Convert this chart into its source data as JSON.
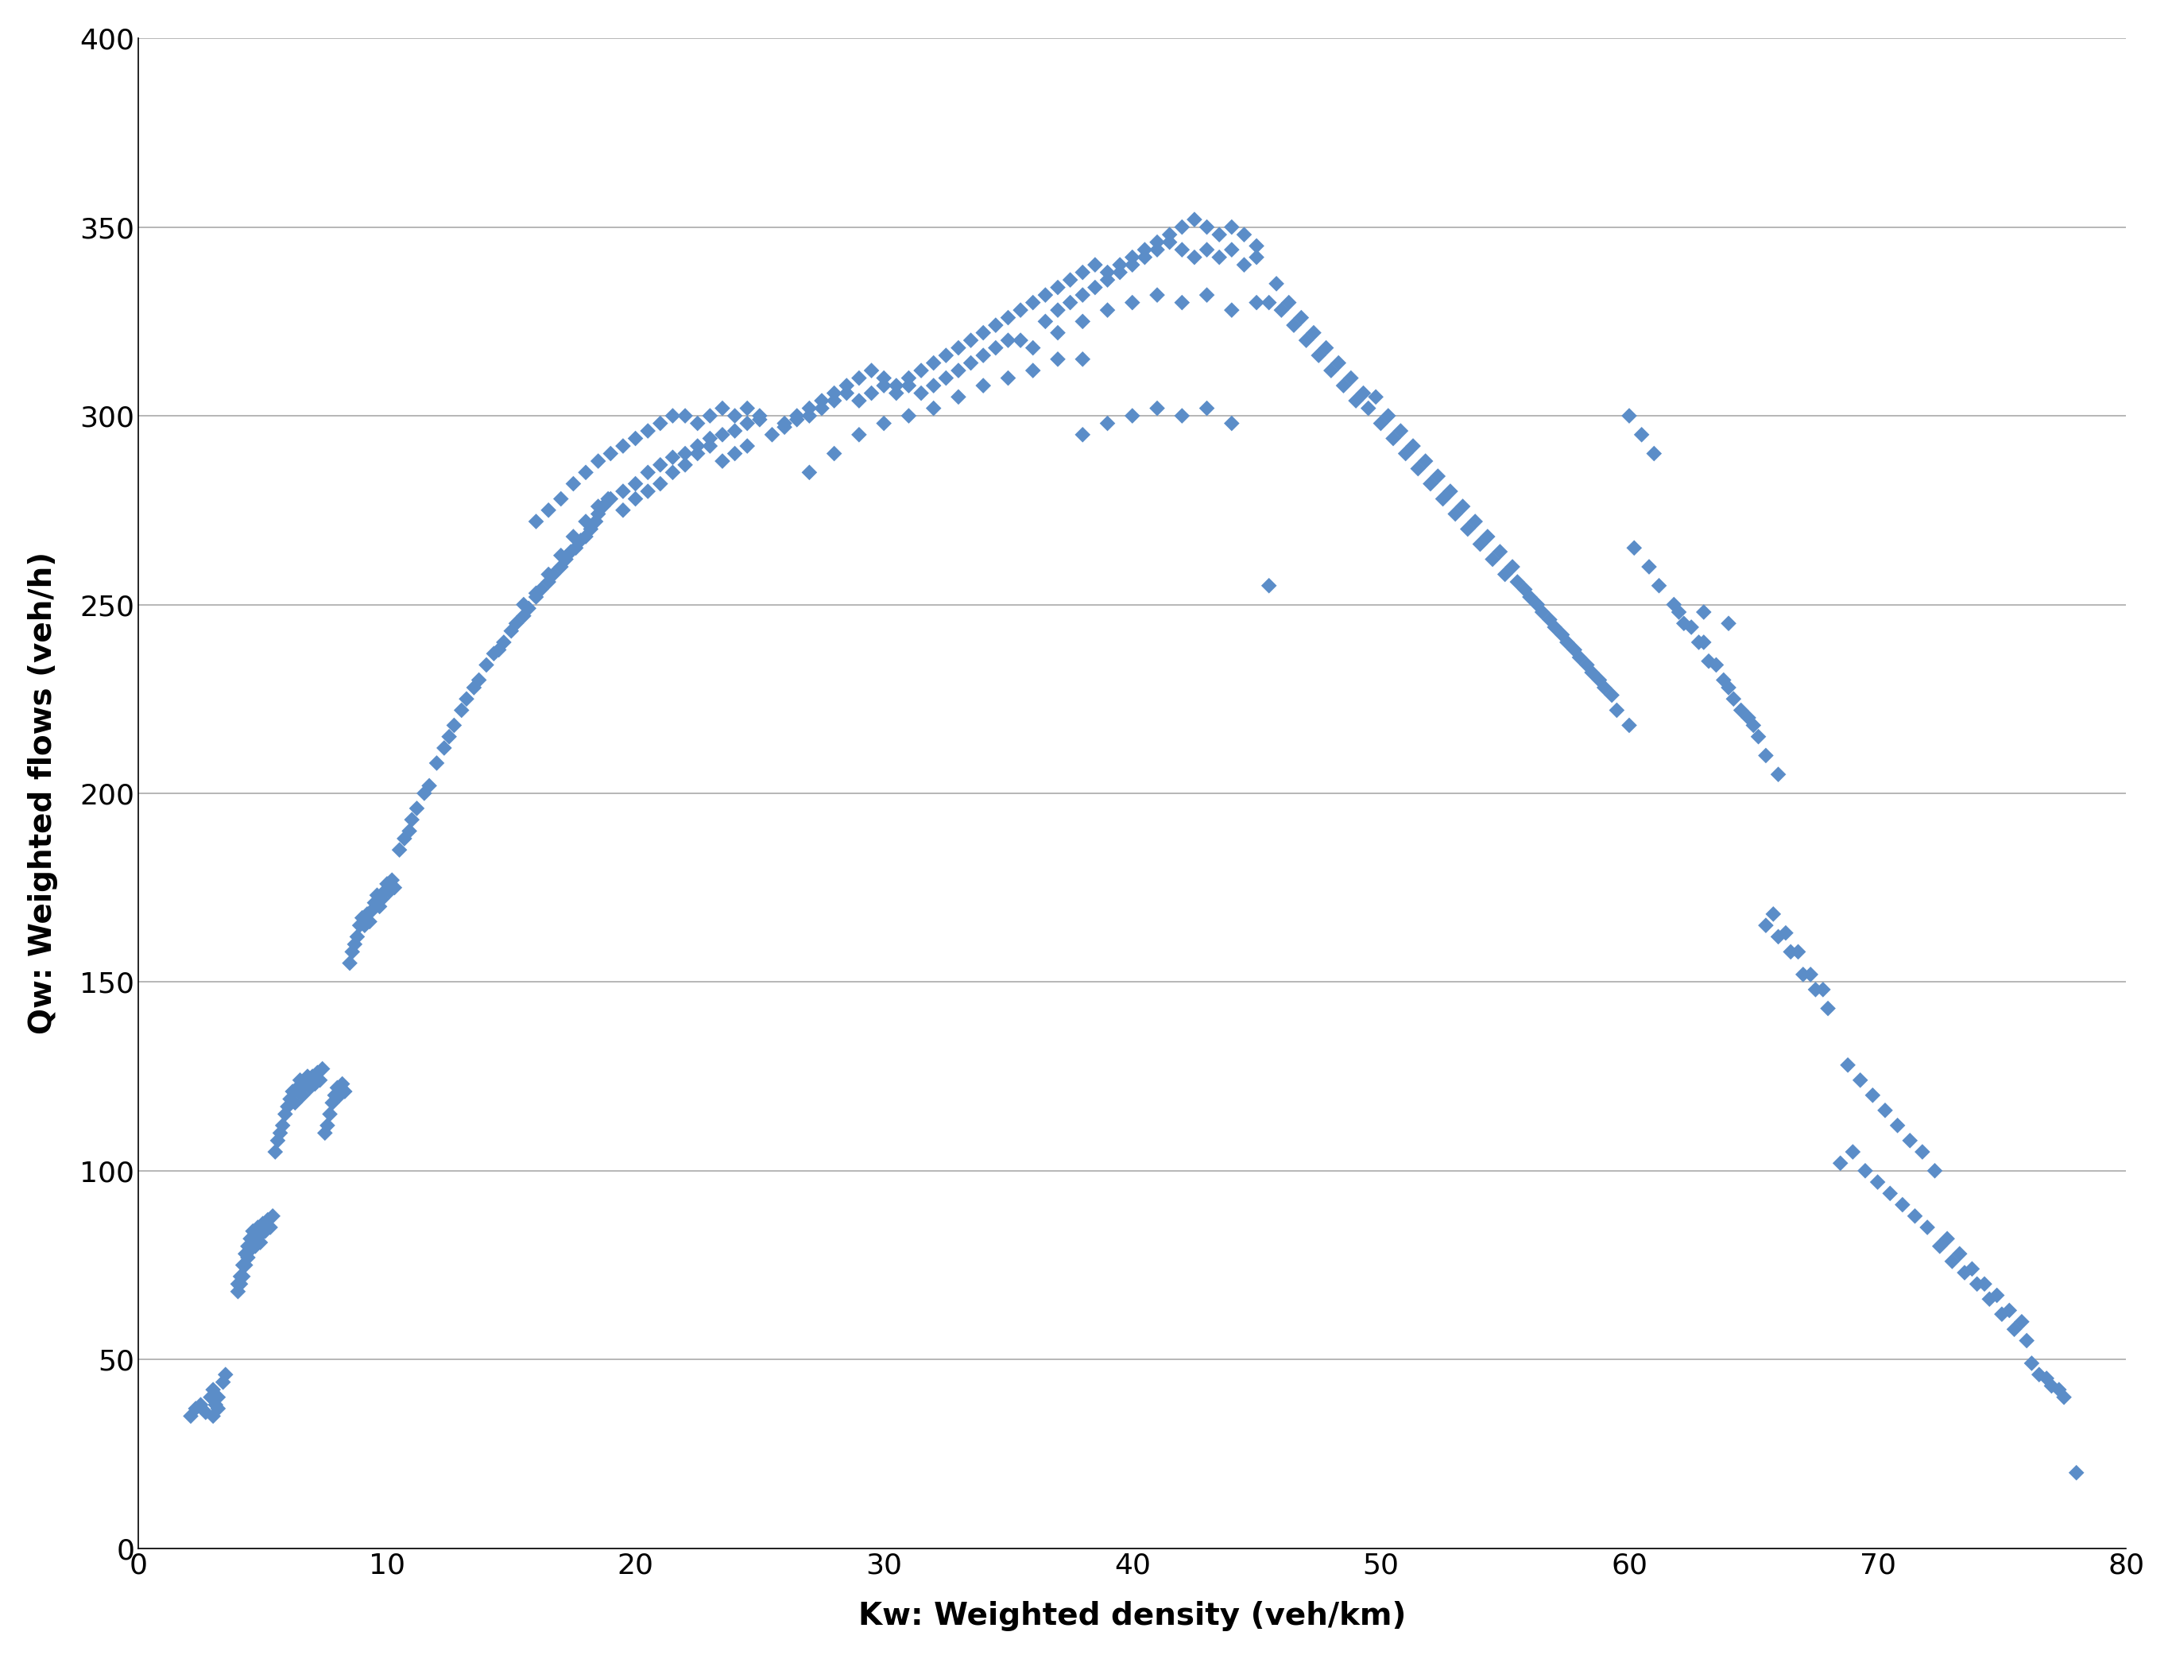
{
  "title": "",
  "xlabel": "Kw: Weighted density (veh/km)",
  "ylabel": "Qw: Weighted flows (veh/h)",
  "xlim": [
    0,
    80
  ],
  "ylim": [
    0,
    400
  ],
  "xticks": [
    0,
    10,
    20,
    30,
    40,
    50,
    60,
    70,
    80
  ],
  "yticks": [
    0,
    50,
    100,
    150,
    200,
    250,
    300,
    350,
    400
  ],
  "marker_color": "#5B8DC8",
  "marker_style": "D",
  "marker_size": 100,
  "background_color": "#FFFFFF",
  "grid_color": "#AAAAAA",
  "xlabel_fontsize": 28,
  "ylabel_fontsize": 28,
  "tick_fontsize": 26,
  "scatter_data": [
    [
      2.1,
      35
    ],
    [
      2.3,
      37
    ],
    [
      2.5,
      38
    ],
    [
      2.7,
      36
    ],
    [
      2.9,
      40
    ],
    [
      3.0,
      42
    ],
    [
      3.1,
      38
    ],
    [
      3.2,
      40
    ],
    [
      3.4,
      44
    ],
    [
      3.5,
      46
    ],
    [
      3.0,
      35
    ],
    [
      3.2,
      37
    ],
    [
      4.0,
      70
    ],
    [
      4.1,
      72
    ],
    [
      4.2,
      75
    ],
    [
      4.3,
      78
    ],
    [
      4.4,
      80
    ],
    [
      4.5,
      82
    ],
    [
      4.6,
      84
    ],
    [
      4.7,
      82
    ],
    [
      4.8,
      85
    ],
    [
      4.9,
      83
    ],
    [
      5.0,
      86
    ],
    [
      5.1,
      84
    ],
    [
      5.2,
      87
    ],
    [
      5.3,
      85
    ],
    [
      5.4,
      88
    ],
    [
      4.0,
      68
    ],
    [
      4.1,
      70
    ],
    [
      4.2,
      72
    ],
    [
      4.3,
      75
    ],
    [
      4.4,
      77
    ],
    [
      4.5,
      79
    ],
    [
      4.6,
      81
    ],
    [
      4.7,
      80
    ],
    [
      4.8,
      83
    ],
    [
      4.9,
      81
    ],
    [
      5.5,
      105
    ],
    [
      5.6,
      108
    ],
    [
      5.7,
      110
    ],
    [
      5.8,
      112
    ],
    [
      5.9,
      115
    ],
    [
      6.0,
      117
    ],
    [
      6.1,
      119
    ],
    [
      6.2,
      121
    ],
    [
      6.3,
      118
    ],
    [
      6.4,
      122
    ],
    [
      6.5,
      124
    ],
    [
      6.6,
      120
    ],
    [
      6.7,
      123
    ],
    [
      6.8,
      125
    ],
    [
      6.9,
      122
    ],
    [
      7.0,
      125
    ],
    [
      7.1,
      123
    ],
    [
      7.2,
      126
    ],
    [
      7.3,
      124
    ],
    [
      7.4,
      127
    ],
    [
      7.5,
      110
    ],
    [
      7.6,
      112
    ],
    [
      7.7,
      115
    ],
    [
      7.8,
      118
    ],
    [
      7.9,
      120
    ],
    [
      8.0,
      122
    ],
    [
      8.1,
      120
    ],
    [
      8.2,
      123
    ],
    [
      8.3,
      121
    ],
    [
      8.5,
      155
    ],
    [
      8.6,
      158
    ],
    [
      8.7,
      160
    ],
    [
      8.8,
      162
    ],
    [
      8.9,
      165
    ],
    [
      9.0,
      167
    ],
    [
      9.1,
      165
    ],
    [
      9.2,
      168
    ],
    [
      9.3,
      166
    ],
    [
      9.4,
      169
    ],
    [
      9.5,
      171
    ],
    [
      9.6,
      173
    ],
    [
      9.7,
      170
    ],
    [
      9.8,
      172
    ],
    [
      9.9,
      174
    ],
    [
      10.0,
      176
    ],
    [
      10.1,
      174
    ],
    [
      10.2,
      177
    ],
    [
      10.3,
      175
    ],
    [
      10.5,
      185
    ],
    [
      10.7,
      188
    ],
    [
      10.9,
      190
    ],
    [
      11.0,
      193
    ],
    [
      11.2,
      196
    ],
    [
      11.5,
      200
    ],
    [
      11.7,
      202
    ],
    [
      12.0,
      208
    ],
    [
      12.3,
      212
    ],
    [
      12.5,
      215
    ],
    [
      12.7,
      218
    ],
    [
      13.0,
      222
    ],
    [
      13.2,
      225
    ],
    [
      13.5,
      228
    ],
    [
      13.7,
      230
    ],
    [
      14.0,
      234
    ],
    [
      14.3,
      237
    ],
    [
      14.5,
      238
    ],
    [
      14.7,
      240
    ],
    [
      15.0,
      243
    ],
    [
      15.2,
      245
    ],
    [
      15.5,
      247
    ],
    [
      15.7,
      249
    ],
    [
      16.0,
      252
    ],
    [
      16.2,
      254
    ],
    [
      16.5,
      256
    ],
    [
      16.7,
      258
    ],
    [
      17.0,
      260
    ],
    [
      17.2,
      262
    ],
    [
      17.4,
      264
    ],
    [
      17.6,
      265
    ],
    [
      17.8,
      267
    ],
    [
      18.0,
      268
    ],
    [
      18.2,
      270
    ],
    [
      18.4,
      272
    ],
    [
      18.5,
      274
    ],
    [
      18.7,
      276
    ],
    [
      18.9,
      278
    ],
    [
      15.5,
      250
    ],
    [
      16.0,
      253
    ],
    [
      16.5,
      258
    ],
    [
      17.0,
      263
    ],
    [
      17.5,
      268
    ],
    [
      18.0,
      272
    ],
    [
      18.5,
      276
    ],
    [
      19.0,
      278
    ],
    [
      19.5,
      280
    ],
    [
      20.0,
      282
    ],
    [
      20.5,
      285
    ],
    [
      21.0,
      287
    ],
    [
      21.5,
      289
    ],
    [
      22.0,
      290
    ],
    [
      22.5,
      292
    ],
    [
      23.0,
      294
    ],
    [
      23.5,
      295
    ],
    [
      24.0,
      296
    ],
    [
      24.5,
      298
    ],
    [
      25.0,
      299
    ],
    [
      16.0,
      272
    ],
    [
      16.5,
      275
    ],
    [
      17.0,
      278
    ],
    [
      17.5,
      282
    ],
    [
      18.0,
      285
    ],
    [
      18.5,
      288
    ],
    [
      19.0,
      290
    ],
    [
      19.5,
      292
    ],
    [
      20.0,
      294
    ],
    [
      20.5,
      296
    ],
    [
      21.0,
      298
    ],
    [
      21.5,
      300
    ],
    [
      22.0,
      300
    ],
    [
      22.5,
      298
    ],
    [
      23.0,
      300
    ],
    [
      23.5,
      302
    ],
    [
      24.0,
      300
    ],
    [
      24.5,
      302
    ],
    [
      25.0,
      300
    ],
    [
      19.5,
      275
    ],
    [
      20.0,
      278
    ],
    [
      20.5,
      280
    ],
    [
      21.0,
      282
    ],
    [
      21.5,
      285
    ],
    [
      22.0,
      287
    ],
    [
      22.5,
      290
    ],
    [
      23.0,
      292
    ],
    [
      23.5,
      288
    ],
    [
      24.0,
      290
    ],
    [
      24.5,
      292
    ],
    [
      25.5,
      295
    ],
    [
      26.0,
      297
    ],
    [
      26.5,
      299
    ],
    [
      27.0,
      300
    ],
    [
      27.5,
      302
    ],
    [
      28.0,
      304
    ],
    [
      28.5,
      306
    ],
    [
      29.0,
      304
    ],
    [
      29.5,
      306
    ],
    [
      30.0,
      308
    ],
    [
      30.5,
      306
    ],
    [
      31.0,
      308
    ],
    [
      31.5,
      306
    ],
    [
      32.0,
      308
    ],
    [
      32.5,
      310
    ],
    [
      33.0,
      312
    ],
    [
      33.5,
      314
    ],
    [
      34.0,
      316
    ],
    [
      34.5,
      318
    ],
    [
      35.0,
      320
    ],
    [
      26.0,
      298
    ],
    [
      26.5,
      300
    ],
    [
      27.0,
      302
    ],
    [
      27.5,
      304
    ],
    [
      28.0,
      306
    ],
    [
      28.5,
      308
    ],
    [
      29.0,
      310
    ],
    [
      29.5,
      312
    ],
    [
      30.0,
      310
    ],
    [
      30.5,
      308
    ],
    [
      31.0,
      310
    ],
    [
      31.5,
      312
    ],
    [
      32.0,
      314
    ],
    [
      32.5,
      316
    ],
    [
      33.0,
      318
    ],
    [
      33.5,
      320
    ],
    [
      34.0,
      322
    ],
    [
      34.5,
      324
    ],
    [
      35.0,
      326
    ],
    [
      35.5,
      328
    ],
    [
      27.0,
      285
    ],
    [
      28.0,
      290
    ],
    [
      29.0,
      295
    ],
    [
      30.0,
      298
    ],
    [
      31.0,
      300
    ],
    [
      32.0,
      302
    ],
    [
      33.0,
      305
    ],
    [
      34.0,
      308
    ],
    [
      35.0,
      310
    ],
    [
      36.0,
      312
    ],
    [
      37.0,
      315
    ],
    [
      38.0,
      315
    ],
    [
      36.0,
      330
    ],
    [
      36.5,
      332
    ],
    [
      37.0,
      334
    ],
    [
      37.5,
      336
    ],
    [
      38.0,
      338
    ],
    [
      38.5,
      340
    ],
    [
      39.0,
      338
    ],
    [
      39.5,
      340
    ],
    [
      40.0,
      342
    ],
    [
      40.5,
      344
    ],
    [
      41.0,
      346
    ],
    [
      41.5,
      348
    ],
    [
      42.0,
      350
    ],
    [
      42.5,
      352
    ],
    [
      43.0,
      350
    ],
    [
      43.5,
      348
    ],
    [
      44.0,
      350
    ],
    [
      44.5,
      348
    ],
    [
      45.0,
      345
    ],
    [
      36.5,
      325
    ],
    [
      37.0,
      328
    ],
    [
      37.5,
      330
    ],
    [
      38.0,
      332
    ],
    [
      38.5,
      334
    ],
    [
      39.0,
      336
    ],
    [
      39.5,
      338
    ],
    [
      40.0,
      340
    ],
    [
      40.5,
      342
    ],
    [
      41.0,
      344
    ],
    [
      41.5,
      346
    ],
    [
      42.0,
      344
    ],
    [
      42.5,
      342
    ],
    [
      43.0,
      344
    ],
    [
      43.5,
      342
    ],
    [
      44.0,
      344
    ],
    [
      44.5,
      340
    ],
    [
      45.0,
      342
    ],
    [
      35.5,
      320
    ],
    [
      36.0,
      318
    ],
    [
      37.0,
      322
    ],
    [
      38.0,
      325
    ],
    [
      39.0,
      328
    ],
    [
      40.0,
      330
    ],
    [
      41.0,
      332
    ],
    [
      42.0,
      330
    ],
    [
      43.0,
      332
    ],
    [
      44.0,
      328
    ],
    [
      45.0,
      330
    ],
    [
      38.0,
      295
    ],
    [
      39.0,
      298
    ],
    [
      40.0,
      300
    ],
    [
      41.0,
      302
    ],
    [
      42.0,
      300
    ],
    [
      43.0,
      302
    ],
    [
      44.0,
      298
    ],
    [
      45.5,
      330
    ],
    [
      46.0,
      328
    ],
    [
      46.5,
      324
    ],
    [
      47.0,
      320
    ],
    [
      47.5,
      316
    ],
    [
      48.0,
      312
    ],
    [
      48.5,
      308
    ],
    [
      49.0,
      304
    ],
    [
      45.8,
      335
    ],
    [
      46.3,
      330
    ],
    [
      46.8,
      326
    ],
    [
      47.3,
      322
    ],
    [
      47.8,
      318
    ],
    [
      48.3,
      314
    ],
    [
      48.8,
      310
    ],
    [
      49.3,
      306
    ],
    [
      45.5,
      255
    ],
    [
      49.5,
      302
    ],
    [
      50.0,
      298
    ],
    [
      50.5,
      294
    ],
    [
      51.0,
      290
    ],
    [
      51.5,
      286
    ],
    [
      52.0,
      282
    ],
    [
      52.5,
      278
    ],
    [
      53.0,
      274
    ],
    [
      53.5,
      270
    ],
    [
      54.0,
      266
    ],
    [
      54.5,
      262
    ],
    [
      55.0,
      258
    ],
    [
      49.8,
      305
    ],
    [
      50.3,
      300
    ],
    [
      50.8,
      296
    ],
    [
      51.3,
      292
    ],
    [
      51.8,
      288
    ],
    [
      52.3,
      284
    ],
    [
      52.8,
      280
    ],
    [
      53.3,
      276
    ],
    [
      53.8,
      272
    ],
    [
      54.3,
      268
    ],
    [
      54.8,
      264
    ],
    [
      55.3,
      260
    ],
    [
      55.5,
      256
    ],
    [
      56.0,
      252
    ],
    [
      56.5,
      248
    ],
    [
      57.0,
      244
    ],
    [
      57.5,
      240
    ],
    [
      58.0,
      236
    ],
    [
      58.5,
      232
    ],
    [
      59.0,
      228
    ],
    [
      55.8,
      254
    ],
    [
      56.3,
      250
    ],
    [
      56.8,
      246
    ],
    [
      57.3,
      242
    ],
    [
      57.8,
      238
    ],
    [
      58.3,
      234
    ],
    [
      58.8,
      230
    ],
    [
      59.3,
      226
    ],
    [
      59.5,
      222
    ],
    [
      60.0,
      218
    ],
    [
      60.0,
      300
    ],
    [
      60.5,
      295
    ],
    [
      61.0,
      290
    ],
    [
      60.2,
      265
    ],
    [
      60.8,
      260
    ],
    [
      61.2,
      255
    ],
    [
      61.8,
      250
    ],
    [
      62.0,
      248
    ],
    [
      62.5,
      244
    ],
    [
      63.0,
      240
    ],
    [
      63.5,
      234
    ],
    [
      64.0,
      228
    ],
    [
      64.5,
      222
    ],
    [
      65.0,
      218
    ],
    [
      62.2,
      245
    ],
    [
      62.8,
      240
    ],
    [
      63.2,
      235
    ],
    [
      63.8,
      230
    ],
    [
      64.2,
      225
    ],
    [
      64.8,
      220
    ],
    [
      65.2,
      215
    ],
    [
      65.5,
      210
    ],
    [
      66.0,
      205
    ],
    [
      65.5,
      165
    ],
    [
      66.0,
      162
    ],
    [
      66.5,
      158
    ],
    [
      67.0,
      152
    ],
    [
      67.5,
      148
    ],
    [
      68.0,
      143
    ],
    [
      65.8,
      168
    ],
    [
      66.3,
      163
    ],
    [
      66.8,
      158
    ],
    [
      67.3,
      152
    ],
    [
      67.8,
      148
    ],
    [
      68.5,
      102
    ],
    [
      69.0,
      105
    ],
    [
      69.5,
      100
    ],
    [
      70.0,
      97
    ],
    [
      70.5,
      94
    ],
    [
      71.0,
      91
    ],
    [
      71.5,
      88
    ],
    [
      72.0,
      85
    ],
    [
      68.8,
      128
    ],
    [
      69.3,
      124
    ],
    [
      69.8,
      120
    ],
    [
      70.3,
      116
    ],
    [
      70.8,
      112
    ],
    [
      71.3,
      108
    ],
    [
      71.8,
      105
    ],
    [
      72.3,
      100
    ],
    [
      72.5,
      80
    ],
    [
      73.0,
      76
    ],
    [
      73.5,
      73
    ],
    [
      74.0,
      70
    ],
    [
      74.5,
      66
    ],
    [
      75.0,
      62
    ],
    [
      75.5,
      58
    ],
    [
      76.0,
      55
    ],
    [
      72.8,
      82
    ],
    [
      73.3,
      78
    ],
    [
      73.8,
      74
    ],
    [
      74.3,
      70
    ],
    [
      74.8,
      67
    ],
    [
      75.3,
      63
    ],
    [
      75.8,
      60
    ],
    [
      76.5,
      46
    ],
    [
      77.0,
      43
    ],
    [
      77.5,
      40
    ],
    [
      78.0,
      20
    ],
    [
      76.2,
      49
    ],
    [
      76.8,
      45
    ],
    [
      77.3,
      42
    ],
    [
      63.0,
      248
    ],
    [
      64.0,
      245
    ]
  ]
}
